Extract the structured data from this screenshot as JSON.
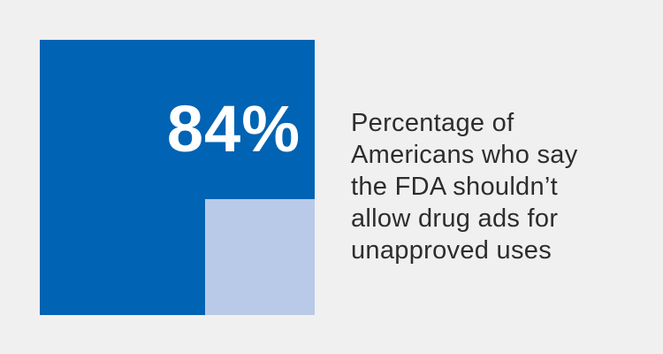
{
  "chart_data": {
    "type": "square-area",
    "title": "Percentage of Americans who say the FDA shouldn’t allow drug ads for unapproved uses",
    "value_percent": 84,
    "remainder_percent": 16,
    "value_label": "84%",
    "caption_lines": [
      "Percentage of",
      "Americans who say",
      "the FDA shouldn’t",
      "allow drug ads for",
      "unapproved uses"
    ]
  },
  "colors": {
    "background": "#f0f0f0",
    "value_fill": "#0063b3",
    "remainder_fill": "#b9cae9",
    "label_text": "#ffffff",
    "caption_text": "#2d2d2d"
  }
}
